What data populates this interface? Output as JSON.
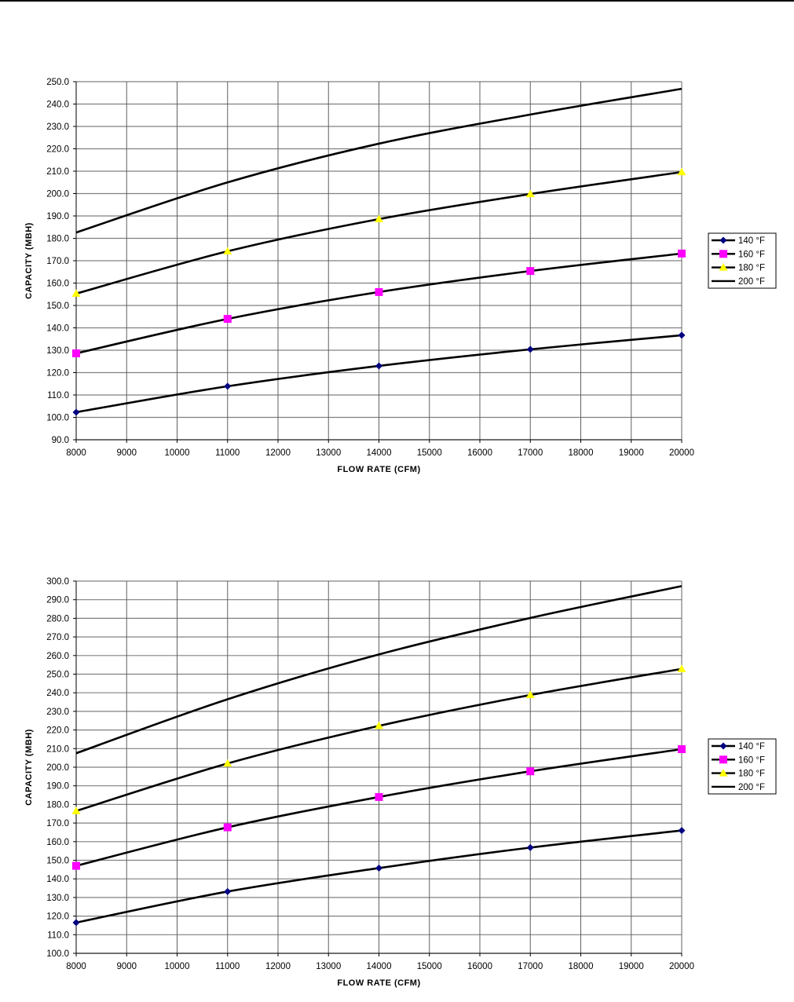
{
  "chart_data": [
    {
      "type": "line",
      "title": "",
      "xlabel": "FLOW RATE (CFM)",
      "ylabel": "CAPACITY (MBH)",
      "xlim": [
        8000,
        20000
      ],
      "ylim": [
        90,
        250
      ],
      "x_ticks": [
        "8000",
        "9000",
        "10000",
        "11000",
        "12000",
        "13000",
        "14000",
        "15000",
        "16000",
        "17000",
        "18000",
        "19000",
        "20000"
      ],
      "y_ticks": [
        "90.0",
        "100.0",
        "110.0",
        "120.0",
        "130.0",
        "140.0",
        "150.0",
        "160.0",
        "170.0",
        "180.0",
        "190.0",
        "200.0",
        "210.0",
        "220.0",
        "230.0",
        "240.0",
        "250.0"
      ],
      "grid": true,
      "legend_placement": "right",
      "x": [
        8000,
        11000,
        14000,
        17000,
        20000
      ],
      "series": [
        {
          "name": "140 °F",
          "marker": "diamond",
          "color": "#000080",
          "values": [
            102.3,
            113.9,
            123.0,
            130.4,
            136.7
          ]
        },
        {
          "name": "160 °F",
          "marker": "square",
          "color": "#ff00ff",
          "values": [
            128.6,
            144.0,
            156.0,
            165.4,
            173.2
          ]
        },
        {
          "name": "180 °F",
          "marker": "triangle",
          "color": "#ffff00",
          "values": [
            155.3,
            174.2,
            188.6,
            199.8,
            209.6
          ]
        },
        {
          "name": "200 °F",
          "marker": "none",
          "color": "#000000",
          "values": [
            182.6,
            205.0,
            222.3,
            235.3,
            246.8
          ]
        }
      ]
    },
    {
      "type": "line",
      "title": "",
      "xlabel": "FLOW RATE (CFM)",
      "ylabel": "CAPACITY (MBH)",
      "xlim": [
        8000,
        20000
      ],
      "ylim": [
        100,
        300
      ],
      "x_ticks": [
        "8000",
        "9000",
        "10000",
        "11000",
        "12000",
        "13000",
        "14000",
        "15000",
        "16000",
        "17000",
        "18000",
        "19000",
        "20000"
      ],
      "y_ticks": [
        "100.0",
        "110.0",
        "120.0",
        "130.0",
        "140.0",
        "150.0",
        "160.0",
        "170.0",
        "180.0",
        "190.0",
        "200.0",
        "210.0",
        "220.0",
        "230.0",
        "240.0",
        "250.0",
        "260.0",
        "270.0",
        "280.0",
        "290.0",
        "300.0"
      ],
      "grid": true,
      "legend_placement": "right",
      "x": [
        8000,
        11000,
        14000,
        17000,
        20000
      ],
      "series": [
        {
          "name": "140 °F",
          "marker": "diamond",
          "color": "#000080",
          "values": [
            116.5,
            133.2,
            145.8,
            156.8,
            166.0
          ]
        },
        {
          "name": "160 °F",
          "marker": "square",
          "color": "#ff00ff",
          "values": [
            147.0,
            167.7,
            184.0,
            197.8,
            209.7
          ]
        },
        {
          "name": "180 °F",
          "marker": "triangle",
          "color": "#ffff00",
          "values": [
            176.5,
            202.0,
            222.2,
            238.8,
            252.8
          ]
        },
        {
          "name": "200 °F",
          "marker": "none",
          "color": "#000000",
          "values": [
            207.5,
            236.5,
            260.6,
            280.2,
            297.3
          ]
        }
      ]
    }
  ]
}
